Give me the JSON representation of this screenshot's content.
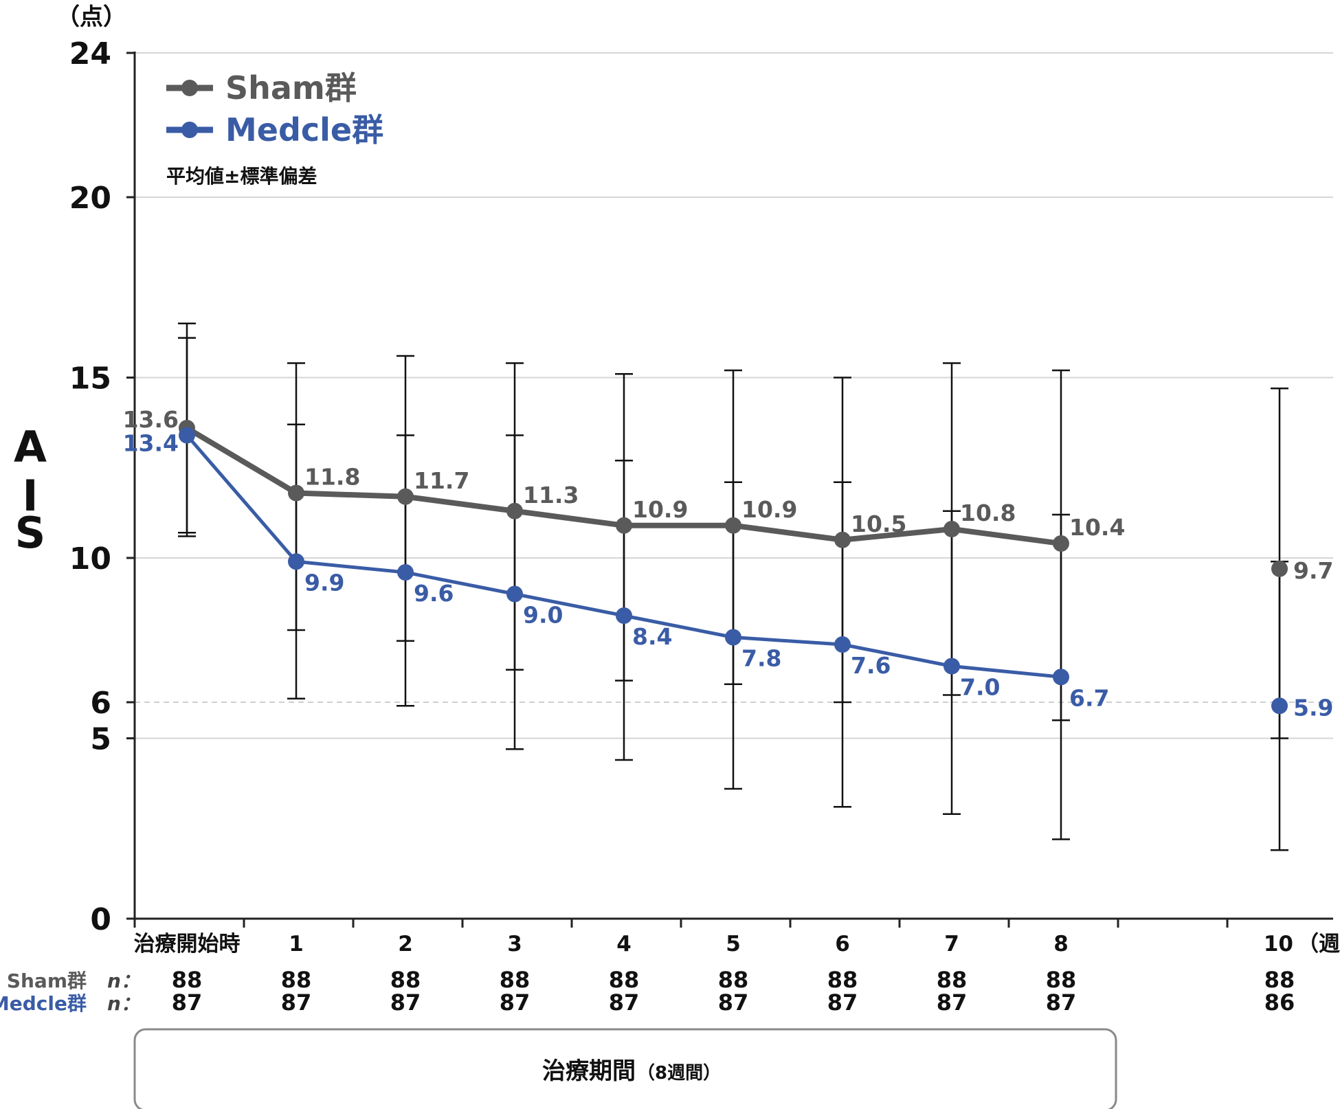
{
  "chart_data": {
    "type": "line",
    "unit_label": "（点）",
    "ylabel": "AIS",
    "ylim": [
      0,
      24
    ],
    "y_ticks": [
      "0",
      "5",
      "6",
      "10",
      "15",
      "20",
      "24"
    ],
    "x_unit_label": "（週）",
    "categories": [
      "治療開始時",
      "1",
      "2",
      "3",
      "4",
      "5",
      "6",
      "7",
      "8",
      "10"
    ],
    "legend": {
      "sham": "Sham群",
      "medcle": "Medcle群"
    },
    "note": "平均値±標準偏差",
    "series": [
      {
        "key": "sham",
        "name": "Sham群",
        "color": "#5a5a5a",
        "values": [
          13.6,
          11.8,
          11.7,
          11.3,
          10.9,
          10.9,
          10.5,
          10.8,
          10.4,
          9.7
        ],
        "labels": [
          "13.6",
          "11.8",
          "11.7",
          "11.3",
          "10.9",
          "10.9",
          "10.5",
          "10.8",
          "10.4",
          "9.7"
        ],
        "err_low": [
          10.6,
          8.0,
          7.7,
          6.9,
          6.6,
          6.5,
          6.0,
          6.2,
          5.5,
          5.0
        ],
        "err_high": [
          16.1,
          13.7,
          13.4,
          13.4,
          12.7,
          12.1,
          12.1,
          11.3,
          11.2,
          9.9
        ]
      },
      {
        "key": "medcle",
        "name": "Medcle群",
        "color": "#3a5ca6",
        "values": [
          13.4,
          9.9,
          9.6,
          9.0,
          8.4,
          7.8,
          7.6,
          7.0,
          6.7,
          5.9
        ],
        "labels": [
          "13.4",
          "9.9",
          "9.6",
          "9.0",
          "8.4",
          "7.8",
          "7.6",
          "7.0",
          "6.7",
          "5.9"
        ],
        "err_low": [
          10.7,
          6.1,
          5.9,
          4.7,
          4.4,
          3.6,
          3.1,
          2.9,
          2.2,
          1.9
        ],
        "err_high": [
          16.5,
          15.4,
          15.6,
          15.4,
          15.1,
          15.2,
          15.0,
          15.4,
          15.2,
          14.7
        ]
      }
    ],
    "n_rows": [
      {
        "label": "Sham群",
        "n_label": "n：",
        "values": [
          "88",
          "88",
          "88",
          "88",
          "88",
          "88",
          "88",
          "88",
          "88",
          "88"
        ]
      },
      {
        "label": "Medcle群",
        "n_label": "n：",
        "values": [
          "87",
          "87",
          "87",
          "87",
          "87",
          "87",
          "87",
          "87",
          "87",
          "86"
        ]
      }
    ],
    "treatment_period": {
      "label": "治療期間",
      "sub": "（8週間）"
    }
  }
}
